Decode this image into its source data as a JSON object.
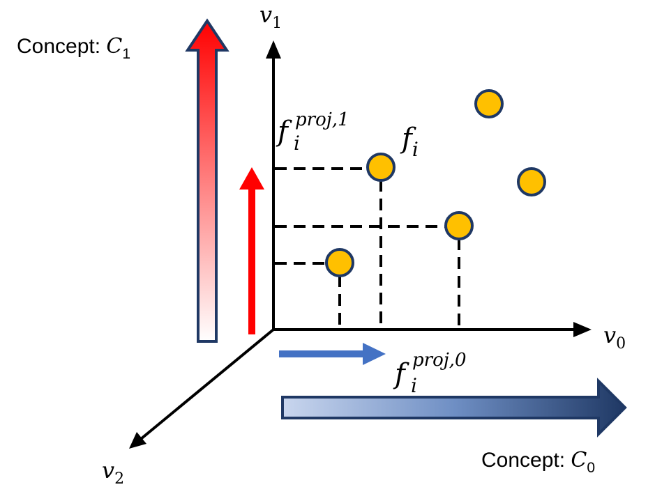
{
  "axes": {
    "y_label": "v",
    "y_sub": "1",
    "x_label": "v",
    "x_sub": "0",
    "z_label": "v",
    "z_sub": "2"
  },
  "concepts": {
    "c1_prefix": "Concept: ",
    "c1_var": "C",
    "c1_sub": "1",
    "c0_prefix": "Concept: ",
    "c0_var": "C",
    "c0_sub": "0"
  },
  "feature": {
    "f_label": "f",
    "f_sub": "i",
    "proj1_sup": "proj,1",
    "proj0_sup": "proj,0"
  },
  "colors": {
    "concept_c1_arrow": "#ff0000",
    "concept_c0_arrow": "#1f3864",
    "proj1_arrow": "#ff0000",
    "proj0_arrow": "#4472c4",
    "point_fill": "#ffc000",
    "point_stroke": "#1f3864"
  }
}
